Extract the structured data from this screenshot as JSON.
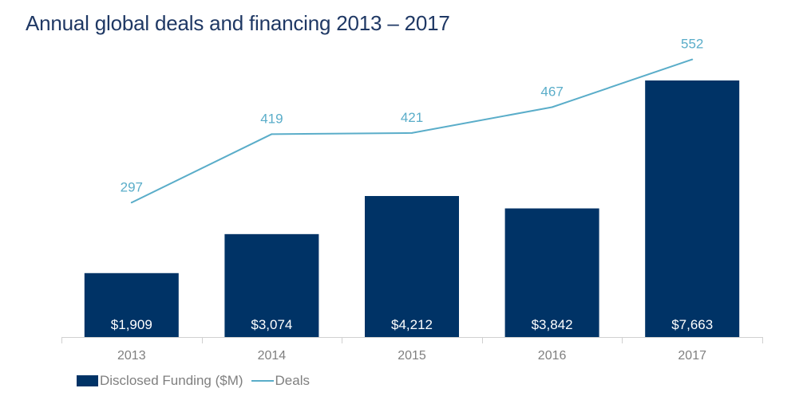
{
  "chart_data": {
    "type": "bar",
    "title": "Annual global deals and financing 2013 – 2017",
    "categories": [
      "2013",
      "2014",
      "2015",
      "2016",
      "2017"
    ],
    "series": [
      {
        "name": "Disclosed Funding ($M)",
        "type": "bar",
        "values": [
          1909,
          3074,
          4212,
          3842,
          7663
        ],
        "labels": [
          "$1,909",
          "$3,074",
          "$4,212",
          "$3,842",
          "$7,663"
        ],
        "color": "#003366"
      },
      {
        "name": "Deals",
        "type": "line",
        "values": [
          297,
          419,
          421,
          467,
          552
        ],
        "labels": [
          "297",
          "419",
          "421",
          "467",
          "552"
        ],
        "color": "#5aadc9"
      }
    ],
    "legend_position": "bottom-left",
    "grid": false
  },
  "colors": {
    "title": "#1f3864",
    "axis": "#d0d0d0",
    "tick_label": "#7f7f7f",
    "bar_label": "#ffffff"
  }
}
